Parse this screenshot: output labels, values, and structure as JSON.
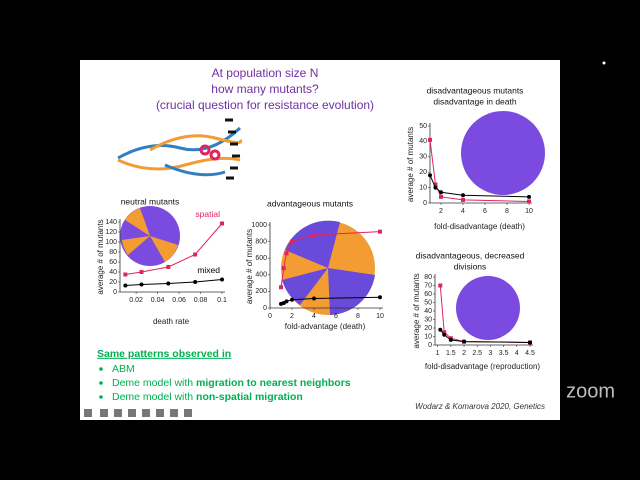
{
  "slide": {
    "title": [
      "At population size N",
      "how many mutants?",
      "(crucial question for resistance evolution)"
    ],
    "summary": {
      "heading": "Same patterns observed in",
      "bullets": [
        {
          "text": "ABM"
        },
        {
          "text": "Deme model with ",
          "bold": "migration to nearest neighbors"
        },
        {
          "text": "Deme model with ",
          "bold": "non-spatial migration"
        }
      ]
    },
    "citation": "Wodarz & Komarova 2020, Genetics",
    "watermark": "zoom"
  },
  "chart_data": [
    {
      "type": "line",
      "title": [
        "neutral mutants"
      ],
      "xlabel": "death rate",
      "ylabel": "average # of mutants",
      "x": [
        0.01,
        0.025,
        0.05,
        0.075,
        0.1
      ],
      "series": [
        {
          "name": "spatial",
          "color": "#e0245e",
          "values": [
            35,
            40,
            50,
            75,
            137
          ]
        },
        {
          "name": "mixed",
          "color": "#000000",
          "values": [
            13,
            15,
            17,
            20,
            25
          ]
        }
      ],
      "xlim": [
        0.005,
        0.1
      ],
      "ylim": [
        0,
        140
      ],
      "xticks": [
        0.02,
        0.04,
        0.06,
        0.08,
        0.1
      ],
      "yticks": [
        0,
        20,
        40,
        60,
        80,
        100,
        120,
        140
      ]
    },
    {
      "type": "line",
      "title": [
        "advantageous mutants"
      ],
      "xlabel": "fold-advantage (death)",
      "ylabel": "average # of mutants",
      "x": [
        1,
        1.25,
        1.5,
        2,
        4,
        10
      ],
      "series": [
        {
          "color": "#e0245e",
          "values": [
            250,
            480,
            660,
            800,
            880,
            920
          ]
        },
        {
          "color": "#000000",
          "values": [
            50,
            60,
            80,
            100,
            115,
            130
          ]
        }
      ],
      "xlim": [
        0,
        10
      ],
      "ylim": [
        0,
        1000
      ],
      "xticks": [
        0,
        2,
        4,
        6,
        8,
        10
      ],
      "yticks": [
        0,
        200,
        400,
        600,
        800,
        1000
      ]
    },
    {
      "type": "line",
      "title": [
        "disadvantageous mutants",
        "disadvantage in death"
      ],
      "xlabel": "fold-disadvantage (death)",
      "ylabel": "average # of mutants",
      "x": [
        1,
        1.5,
        2,
        4,
        10
      ],
      "series": [
        {
          "color": "#e0245e",
          "values": [
            41,
            12,
            4,
            2,
            1
          ]
        },
        {
          "color": "#000000",
          "values": [
            18,
            10,
            7,
            5,
            4
          ]
        }
      ],
      "xlim": [
        1,
        10
      ],
      "ylim": [
        0,
        50
      ],
      "xticks": [
        2,
        4,
        6,
        8,
        10
      ],
      "yticks": [
        0,
        10,
        20,
        30,
        40,
        50
      ]
    },
    {
      "type": "line",
      "title": [
        "disadvantageous, decreased",
        "divisions"
      ],
      "xlabel": "fold-disadvantage (reproduction)",
      "ylabel": "average # of mutants",
      "x": [
        1.1,
        1.25,
        1.5,
        2,
        4.5
      ],
      "series": [
        {
          "color": "#e0245e",
          "values": [
            70,
            15,
            8,
            4,
            3
          ]
        },
        {
          "color": "#000000",
          "values": [
            18,
            12,
            6,
            4,
            3
          ]
        }
      ],
      "xlim": [
        0.9,
        4.5
      ],
      "ylim": [
        0,
        80
      ],
      "xticks": [
        1,
        1.5,
        2,
        2.5,
        3,
        3.5,
        4,
        4.5
      ],
      "yticks": [
        0,
        10,
        20,
        30,
        40,
        50,
        60,
        70,
        80
      ]
    }
  ]
}
